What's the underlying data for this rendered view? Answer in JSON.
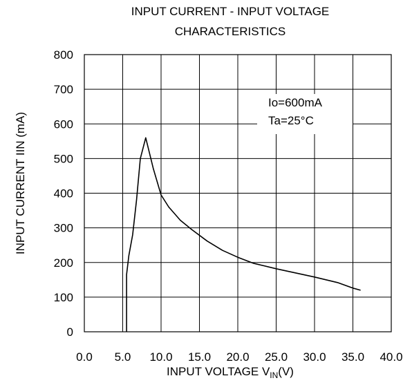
{
  "chart_data": {
    "type": "line",
    "title_line1": "INPUT CURRENT  -  INPUT VOLTAGE",
    "title_line2": "CHARACTERISTICS",
    "xlabel_main": "INPUT VOLTAGE V",
    "xlabel_sub": "IN",
    "xlabel_end": "(V)",
    "ylabel": "INPUT CURRENT IIN (mA)",
    "xlim": [
      0,
      40
    ],
    "ylim": [
      0,
      800
    ],
    "x_ticks": [
      "0.0",
      "5.0",
      "10.0",
      "15.0",
      "20.0",
      "25.0",
      "30.0",
      "35.0",
      "40.0"
    ],
    "y_ticks": [
      "0",
      "100",
      "200",
      "300",
      "400",
      "500",
      "600",
      "700",
      "800"
    ],
    "grid": true,
    "annotations": [
      "Io=600mA",
      "Ta=25°C"
    ],
    "series": [
      {
        "x": [
          5.5,
          5.5,
          5.8,
          6.3,
          6.8,
          7.3,
          8.0,
          9.0,
          10.0,
          11.0,
          12.5,
          14.0,
          16.0,
          18.0,
          20.0,
          22.0,
          25.0,
          27.5,
          30.0,
          33.0,
          35.0,
          36.0
        ],
        "y": [
          0,
          165,
          220,
          280,
          380,
          500,
          560,
          470,
          395,
          360,
          322,
          295,
          262,
          235,
          215,
          198,
          182,
          170,
          158,
          142,
          126,
          120
        ]
      }
    ]
  }
}
